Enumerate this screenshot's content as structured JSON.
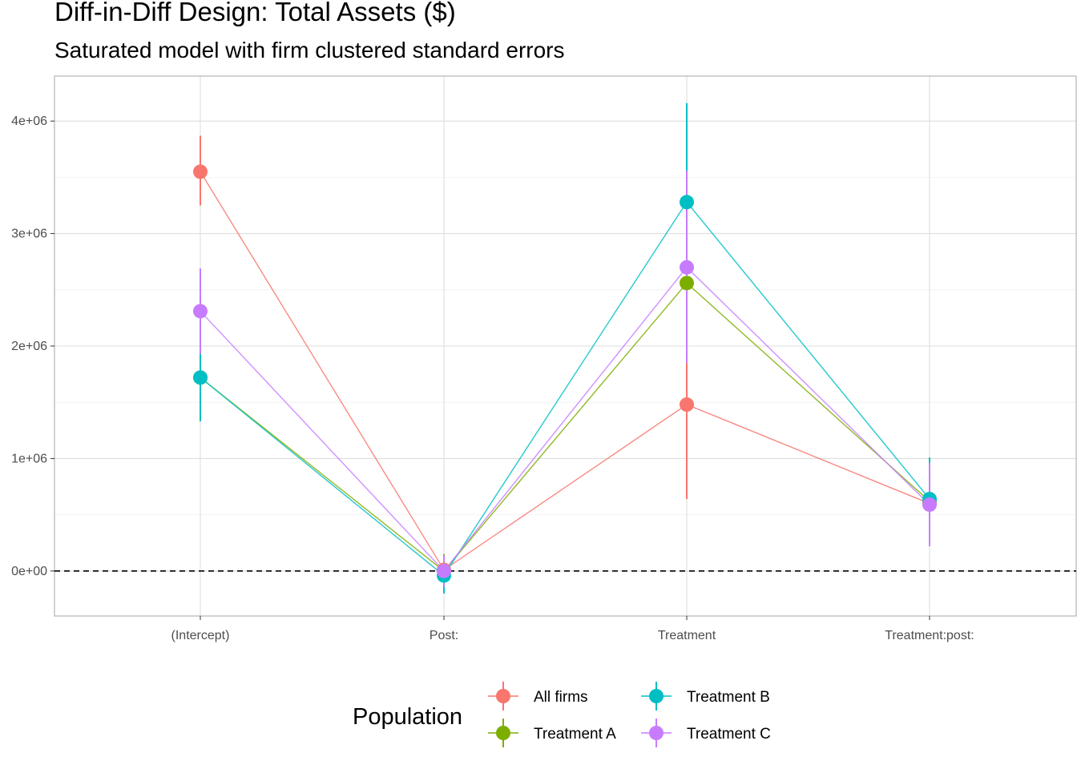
{
  "chart_data": {
    "type": "scatter",
    "title": "Diff-in-Diff Design: Total Assets ($)",
    "subtitle": "Saturated model with firm clustered standard errors",
    "categories": [
      "(Intercept)",
      "Post:",
      "Treatment",
      "Treatment:post:"
    ],
    "ylim": [
      -400000,
      4400000
    ],
    "y_ticks": [
      0,
      1000000,
      2000000,
      3000000,
      4000000
    ],
    "y_tick_labels": [
      "0e+00",
      "1e+06",
      "2e+06",
      "3e+06",
      "4e+06"
    ],
    "reference_line": 0,
    "grid": true,
    "legend": {
      "title": "Population",
      "position": "bottom"
    },
    "series": [
      {
        "name": "All firms",
        "color": "#F8766D",
        "values": [
          3550000,
          10000,
          1480000,
          600000
        ],
        "lower": [
          3250000,
          -100000,
          640000,
          400000
        ],
        "upper": [
          3870000,
          120000,
          2320000,
          800000
        ]
      },
      {
        "name": "Treatment A",
        "color": "#7CAE00",
        "values": [
          1720000,
          0,
          2560000,
          620000
        ],
        "lower": [
          1500000,
          -150000,
          1850000,
          400000
        ],
        "upper": [
          1940000,
          150000,
          3270000,
          840000
        ]
      },
      {
        "name": "Treatment B",
        "color": "#00BFC4",
        "values": [
          1720000,
          -40000,
          3280000,
          640000
        ],
        "lower": [
          1330000,
          -200000,
          2400000,
          290000
        ],
        "upper": [
          1950000,
          110000,
          4160000,
          1010000
        ]
      },
      {
        "name": "Treatment C",
        "color": "#C77CFF",
        "values": [
          2310000,
          0,
          2700000,
          590000
        ],
        "lower": [
          1930000,
          -140000,
          1850000,
          220000
        ],
        "upper": [
          2690000,
          140000,
          3560000,
          960000
        ]
      }
    ]
  }
}
